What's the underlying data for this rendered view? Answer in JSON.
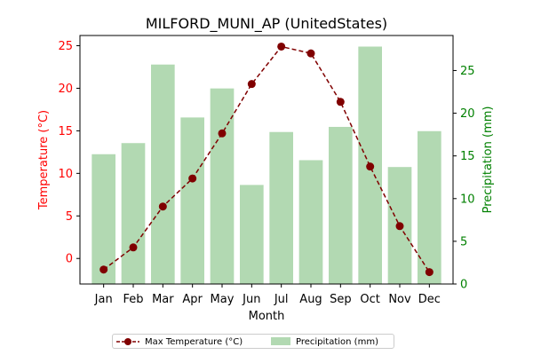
{
  "chart_data": {
    "type": "bar+line",
    "title": "MILFORD_MUNI_AP (UnitedStates)",
    "xlabel": "Month",
    "ylabel_left": "Temperature (°C)",
    "ylabel_right": "Precipitation (mm)",
    "categories": [
      "Jan",
      "Feb",
      "Mar",
      "Apr",
      "May",
      "Jun",
      "Jul",
      "Aug",
      "Sep",
      "Oct",
      "Nov",
      "Dec"
    ],
    "series": [
      {
        "name": "Max Temperature (°C)",
        "type": "line",
        "axis": "left",
        "color": "#800000",
        "values": [
          -1.3,
          1.3,
          6.1,
          9.4,
          14.7,
          20.5,
          24.9,
          24.1,
          18.4,
          10.8,
          3.8,
          -1.6
        ]
      },
      {
        "name": "Precipitation (mm)",
        "type": "bar",
        "axis": "right",
        "color": "#b2d9b2",
        "values": [
          15.2,
          16.5,
          25.7,
          19.5,
          22.9,
          11.6,
          17.8,
          14.5,
          18.4,
          27.8,
          13.7,
          17.9
        ]
      }
    ],
    "ylim_left": [
      -3,
      26.2
    ],
    "yticks_left": [
      0,
      5,
      10,
      15,
      20,
      25
    ],
    "ylim_right": [
      0,
      29.1
    ],
    "yticks_right": [
      0,
      5,
      10,
      15,
      20,
      25
    ],
    "left_axis_color": "#ff0000",
    "right_axis_color": "#008000",
    "grid": false,
    "legend_position": "bottom-center"
  }
}
